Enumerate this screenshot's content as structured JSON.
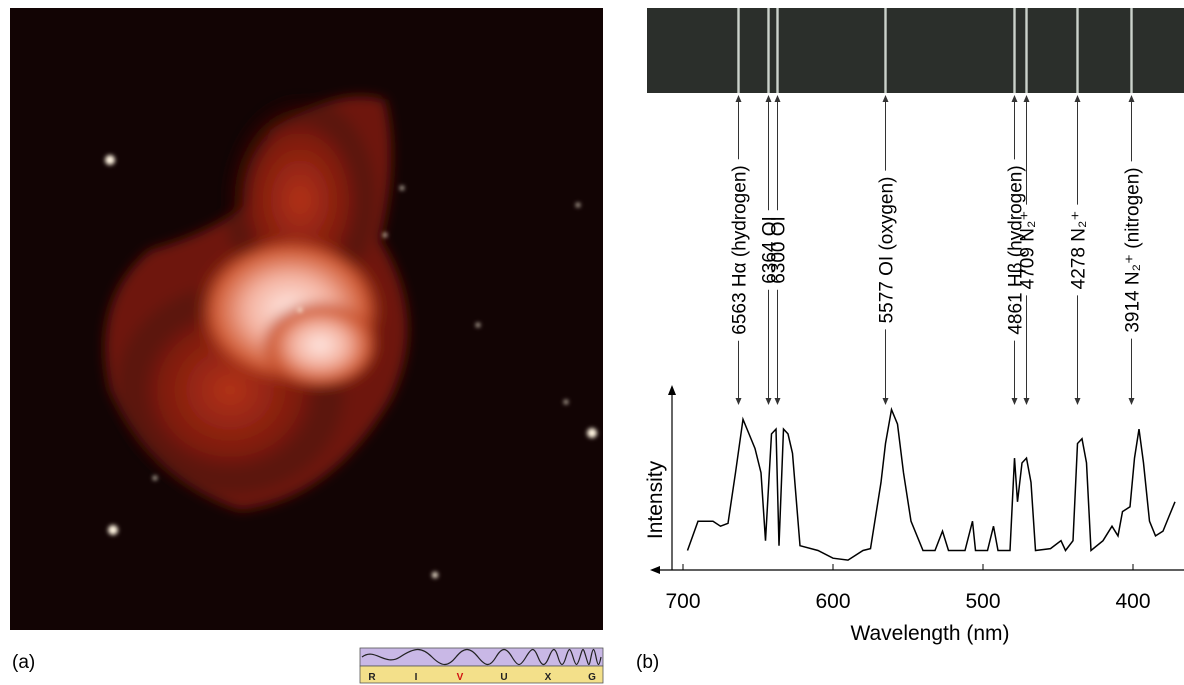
{
  "panel_a": {
    "label": "(a)",
    "spectrum_bands": [
      "R",
      "I",
      "V",
      "U",
      "X",
      "G"
    ]
  },
  "chart_data": {
    "type": "line",
    "panel_label": "(b)",
    "xlabel": "Wavelength (nm)",
    "ylabel": "Intensity",
    "xlim": [
      700,
      370
    ],
    "xticks": [
      700,
      600,
      500,
      400
    ],
    "ylim": [
      0,
      100
    ],
    "color": "#000000",
    "x": [
      697,
      690,
      680,
      675,
      670,
      665,
      660,
      656,
      652,
      648,
      645,
      641,
      638,
      636,
      633,
      630,
      627,
      622,
      610,
      600,
      590,
      580,
      575,
      568,
      565,
      561,
      557,
      553,
      548,
      540,
      532,
      527,
      523,
      512,
      507,
      505,
      497,
      493,
      490,
      482,
      479,
      477,
      474,
      471,
      468,
      465,
      455,
      448,
      445,
      440,
      437,
      434,
      431,
      428,
      420,
      414,
      410,
      407,
      402,
      399,
      396,
      393,
      389,
      385,
      380,
      376,
      372
    ],
    "values": [
      9.6,
      26.6,
      26.6,
      23.7,
      25.4,
      54.8,
      85.9,
      77.4,
      68.9,
      54.8,
      15.3,
      77.4,
      80.2,
      12.4,
      80.2,
      77.4,
      66.1,
      12.4,
      9.6,
      5.1,
      4.0,
      9.6,
      10.7,
      49.2,
      71.8,
      91.5,
      83.1,
      54.8,
      26.6,
      9.6,
      9.6,
      20.9,
      9.6,
      9.6,
      26.6,
      9.6,
      9.6,
      23.7,
      9.6,
      9.6,
      63.3,
      37.9,
      60.5,
      63.3,
      49.2,
      9.6,
      10.7,
      15.3,
      9.6,
      15.3,
      71.8,
      74.6,
      60.5,
      9.6,
      15.3,
      23.7,
      18.1,
      32.2,
      35.0,
      63.3,
      80.2,
      60.5,
      26.6,
      18.1,
      20.9,
      29.4,
      37.9
    ],
    "emission_lines": [
      {
        "label": "6563 Hα (hydrogen)",
        "x": 663
      },
      {
        "label": "6364 OI",
        "x": 643
      },
      {
        "label": "6300 OI",
        "x": 637
      },
      {
        "label": "5577 OI (oxygen)",
        "x": 565
      },
      {
        "label": "4861 Hβ (hydrogen)",
        "x": 479
      },
      {
        "label": "4709 N₂⁺",
        "x": 471
      },
      {
        "label": "4278 N₂⁺",
        "x": 437
      },
      {
        "label": "3914 N₂⁺ (nitrogen)",
        "x": 401
      }
    ]
  }
}
